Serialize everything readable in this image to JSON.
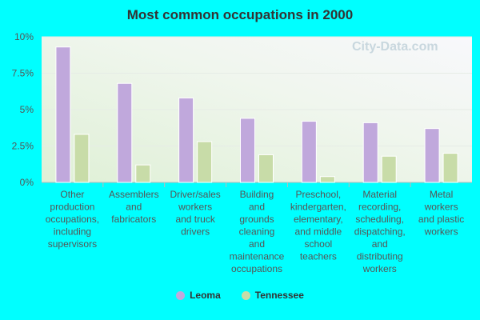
{
  "chart_data": {
    "type": "bar",
    "title": "Most common occupations in 2000",
    "xlabel": "",
    "ylabel": "",
    "ylim": [
      0,
      10
    ],
    "y_ticks": [
      0,
      2.5,
      5,
      7.5,
      10
    ],
    "y_tick_labels": [
      "0%",
      "2.5%",
      "5%",
      "7.5%",
      "10%"
    ],
    "grid": true,
    "legend_position": "bottom-center",
    "categories": [
      [
        "Other",
        "production",
        "occupations,",
        "including",
        "supervisors"
      ],
      [
        "Assemblers",
        "and",
        "fabricators"
      ],
      [
        "Driver/sales",
        "workers",
        "and truck",
        "drivers"
      ],
      [
        "Building",
        "and",
        "grounds",
        "cleaning",
        "and",
        "maintenance",
        "occupations"
      ],
      [
        "Preschool,",
        "kindergarten,",
        "elementary,",
        "and middle",
        "school",
        "teachers"
      ],
      [
        "Material",
        "recording,",
        "scheduling,",
        "dispatching,",
        "and",
        "distributing",
        "workers"
      ],
      [
        "Metal",
        "workers",
        "and plastic",
        "workers"
      ]
    ],
    "series": [
      {
        "name": "Leoma",
        "color": "#c0a8dc",
        "values": [
          9.3,
          6.8,
          5.8,
          4.4,
          4.2,
          4.1,
          3.7
        ]
      },
      {
        "name": "Tennessee",
        "color": "#c8dca8",
        "values": [
          3.3,
          1.2,
          2.8,
          1.9,
          0.4,
          1.8,
          2.0
        ]
      }
    ]
  },
  "watermark_text": "City-Data.com"
}
